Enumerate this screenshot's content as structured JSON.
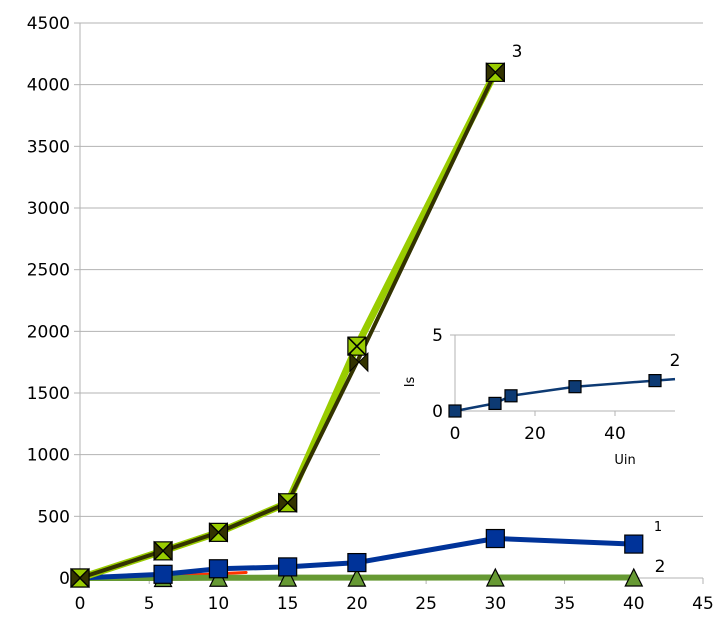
{
  "chart_data": [
    {
      "type": "line",
      "xlim": [
        0,
        45
      ],
      "ylim": [
        0,
        4500
      ],
      "x_ticks": [
        0,
        5,
        10,
        15,
        20,
        25,
        30,
        35,
        40,
        45
      ],
      "y_ticks": [
        0,
        500,
        1000,
        1500,
        2000,
        2500,
        3000,
        3500,
        4000,
        4500
      ],
      "grid": "horizontal",
      "series": [
        {
          "name": "3",
          "color": "#99cc00",
          "marker": "square-x",
          "x": [
            0,
            6,
            10,
            15,
            20,
            30
          ],
          "y": [
            0,
            220,
            370,
            610,
            1880,
            4100
          ]
        },
        {
          "name": "",
          "color": "#333300",
          "marker": "bowtie",
          "x": [
            0,
            6,
            10,
            15,
            20,
            30
          ],
          "y": [
            0,
            220,
            370,
            610,
            1750,
            4100
          ]
        },
        {
          "name": "",
          "color": "#ff3300",
          "marker": "none",
          "x": [
            0,
            6,
            10,
            12
          ],
          "y": [
            0,
            15,
            35,
            45
          ]
        },
        {
          "name": "1",
          "color": "#003399",
          "marker": "square",
          "x": [
            0,
            6,
            10,
            15,
            20,
            30,
            40
          ],
          "y": [
            0,
            30,
            75,
            90,
            125,
            320,
            275
          ]
        },
        {
          "name": "2",
          "color": "#669933",
          "marker": "triangle",
          "x": [
            0,
            6,
            10,
            15,
            20,
            30,
            40
          ],
          "y": [
            0,
            0,
            2,
            3,
            3,
            4,
            4
          ]
        }
      ]
    },
    {
      "type": "line",
      "xlabel": "Uin",
      "ylabel": "Is",
      "xlim": [
        0,
        55
      ],
      "ylim": [
        0,
        5
      ],
      "x_ticks": [
        0,
        20,
        40
      ],
      "y_ticks": [
        0,
        5
      ],
      "grid": "horizontal",
      "series": [
        {
          "name": "2",
          "color": "#0d3a73",
          "marker": "square",
          "x": [
            0,
            10,
            14,
            30,
            50,
            55
          ],
          "y": [
            0,
            0.5,
            1.0,
            1.6,
            2.0,
            2.1
          ]
        }
      ]
    }
  ]
}
